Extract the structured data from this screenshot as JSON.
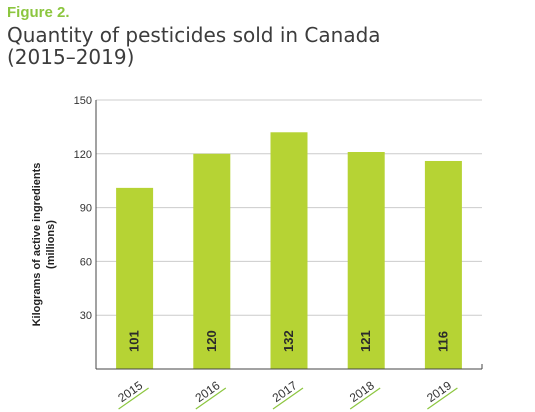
{
  "figure_label": "Figure 2.",
  "title_line1": "Quantity of pesticides sold in Canada",
  "title_line2": "(2015–2019)",
  "colors": {
    "bar": "#b6d334",
    "accent": "#8cc63f",
    "axis": "#444444",
    "grid": "#cccccc",
    "text": "#333333"
  },
  "chart_data": {
    "type": "bar",
    "categories": [
      "2015",
      "2016",
      "2017",
      "2018",
      "2019"
    ],
    "values": [
      101,
      120,
      132,
      121,
      116
    ],
    "data_labels": [
      "101",
      "120",
      "132",
      "121",
      "116"
    ],
    "ylabel_line1": "Kilograms of active ingredients",
    "ylabel_line2": "(millions)",
    "yticks": [
      30,
      60,
      90,
      120,
      150
    ],
    "ylim": [
      0,
      150
    ],
    "grid": true
  }
}
